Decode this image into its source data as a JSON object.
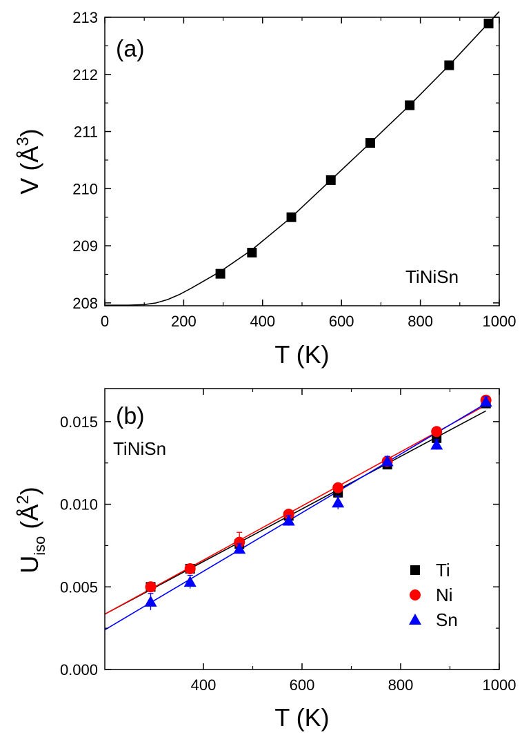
{
  "chart_data": [
    {
      "id": "a",
      "type": "scatter",
      "panel_label": "(a)",
      "annotation": "TiNiSn",
      "xlabel": "T (K)",
      "ylabel": {
        "main": "V (",
        "unit": "Å",
        "sup": "3",
        "close": ")"
      },
      "xlim": [
        0,
        1000
      ],
      "ylim": [
        207.95,
        213
      ],
      "xticks": [
        0,
        200,
        400,
        600,
        800,
        1000
      ],
      "yticks": [
        208,
        209,
        210,
        211,
        212,
        213
      ],
      "series": [
        {
          "marker": "square",
          "color": "#000000",
          "x": [
            293,
            373,
            473,
            573,
            673,
            773,
            873,
            973
          ],
          "y": [
            208.51,
            208.88,
            209.5,
            210.15,
            210.8,
            211.46,
            212.16,
            212.89
          ]
        }
      ],
      "fit": {
        "color": "#000000",
        "x": [
          0,
          60,
          100,
          130,
          160,
          190,
          220,
          250,
          293,
          373,
          473,
          573,
          673,
          773,
          873,
          1000
        ],
        "y": [
          207.96,
          207.96,
          207.97,
          208.0,
          208.06,
          208.15,
          208.26,
          208.38,
          208.55,
          208.93,
          209.5,
          210.15,
          210.8,
          211.46,
          212.16,
          213.1
        ]
      }
    },
    {
      "id": "b",
      "type": "scatter",
      "panel_label": "(b)",
      "annotation": "TiNiSn",
      "xlabel": "T (K)",
      "ylabel": {
        "main": "U",
        "sub": "iso",
        "open": " (",
        "unit": "Å",
        "sup": "2",
        "close": ")"
      },
      "xlim": [
        200,
        1000
      ],
      "ylim": [
        0,
        0.017
      ],
      "xticks": [
        400,
        600,
        800,
        1000
      ],
      "yticks": [
        0.0,
        0.005,
        0.01,
        0.015
      ],
      "ytick_labels": [
        "0.000",
        "0.005",
        "0.010",
        "0.015"
      ],
      "legend_position": "bottom-right",
      "series": [
        {
          "name": "Ti",
          "marker": "square",
          "color": "#000000",
          "x": [
            293,
            373,
            473,
            573,
            673,
            773,
            873,
            973
          ],
          "y": [
            0.005,
            0.0061,
            0.0076,
            0.0093,
            0.0107,
            0.0124,
            0.014,
            0.0161
          ],
          "fit": {
            "x": [
              200,
              973
            ],
            "y": [
              0.00335,
              0.01565
            ]
          }
        },
        {
          "name": "Ni",
          "marker": "circle",
          "color": "#ff0000",
          "x": [
            293,
            373,
            473,
            573,
            673,
            773,
            873,
            973
          ],
          "y": [
            0.005,
            0.0061,
            0.0077,
            0.0094,
            0.011,
            0.0126,
            0.0144,
            0.0163
          ],
          "yerr": [
            0.0001,
            0.0002,
            0.0006,
            0.0001,
            0.0001,
            0.0001,
            0.0001,
            0.0001
          ],
          "fit": {
            "x": [
              200,
              973
            ],
            "y": [
              0.00335,
              0.016
            ]
          }
        },
        {
          "name": "Sn",
          "marker": "triangle",
          "color": "#0000ff",
          "x": [
            293,
            373,
            473,
            573,
            673,
            773,
            873,
            973
          ],
          "y": [
            0.0041,
            0.0053,
            0.0073,
            0.009,
            0.0101,
            0.0126,
            0.0136,
            0.0162
          ],
          "yerr": [
            0.0005,
            0.0004,
            0.0003,
            0.0003,
            0.0004,
            0.0003,
            0.0003,
            0.0003
          ],
          "fit": {
            "x": [
              200,
              973
            ],
            "y": [
              0.0024,
              0.0161
            ]
          }
        }
      ]
    }
  ]
}
